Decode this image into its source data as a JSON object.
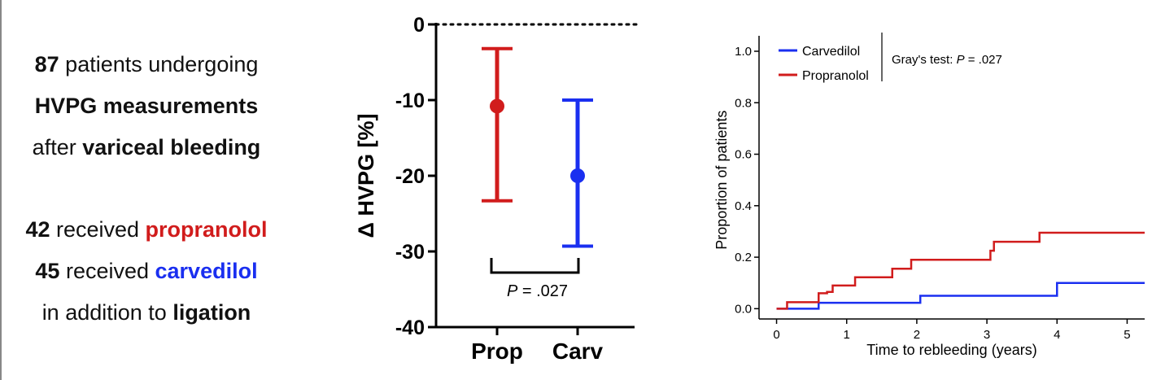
{
  "summary": {
    "line1": {
      "bold": "87",
      "rest": " patients undergoing"
    },
    "line2": "HVPG measurements",
    "line3": {
      "pre": "after ",
      "bold": "variceal bleeding"
    },
    "line4": {
      "bold": "42",
      "mid": " received ",
      "drug": "propranolol"
    },
    "line5": {
      "bold": "45",
      "mid": " received ",
      "drug": "carvedilol"
    },
    "line6": {
      "pre": "in addition to ",
      "bold": "ligation"
    }
  },
  "colors": {
    "propranolol": "#d11c1c",
    "carvedilol": "#1a2ff0"
  },
  "chart_data": [
    {
      "type": "errorbar",
      "ylabel": "Δ HVPG [%]",
      "ylim": [
        -40,
        0
      ],
      "yticks": [
        "0",
        "-10",
        "-20",
        "-30",
        "-40"
      ],
      "categories": [
        "Prop",
        "Carv"
      ],
      "points": [
        {
          "category": "Prop",
          "mean": -10.8,
          "lower": -23.3,
          "upper": -3.2,
          "color": "#d11c1c"
        },
        {
          "category": "Carv",
          "mean": -20.0,
          "lower": -29.3,
          "upper": -10.0,
          "color": "#1a2ff0"
        }
      ],
      "reference_line": 0,
      "annotation": "P = .027"
    },
    {
      "type": "line",
      "step": true,
      "xlabel": "Time to rebleeding (years)",
      "ylabel": "Proportion of patients",
      "xlim": [
        -0.25,
        5.25
      ],
      "ylim": [
        -0.04,
        1.06
      ],
      "xticks": [
        "0",
        "1",
        "2",
        "3",
        "4",
        "5"
      ],
      "yticks": [
        "0.0",
        "0.2",
        "0.4",
        "0.6",
        "0.8",
        "1.0"
      ],
      "legend_position": "top-left",
      "annotation": "Gray's test: P = .027",
      "series": [
        {
          "name": "Carvedilol",
          "color": "#1a2ff0",
          "x": [
            0,
            0.6,
            2.05,
            4.0,
            5.25
          ],
          "y": [
            0,
            0.023,
            0.05,
            0.1,
            0.1
          ]
        },
        {
          "name": "Propranolol",
          "color": "#d11c1c",
          "x": [
            0,
            0.15,
            0.6,
            0.72,
            0.8,
            1.12,
            1.65,
            1.92,
            3.05,
            3.1,
            3.75,
            5.25
          ],
          "y": [
            0,
            0.025,
            0.06,
            0.065,
            0.09,
            0.122,
            0.155,
            0.19,
            0.225,
            0.26,
            0.295,
            0.295
          ]
        }
      ]
    }
  ]
}
